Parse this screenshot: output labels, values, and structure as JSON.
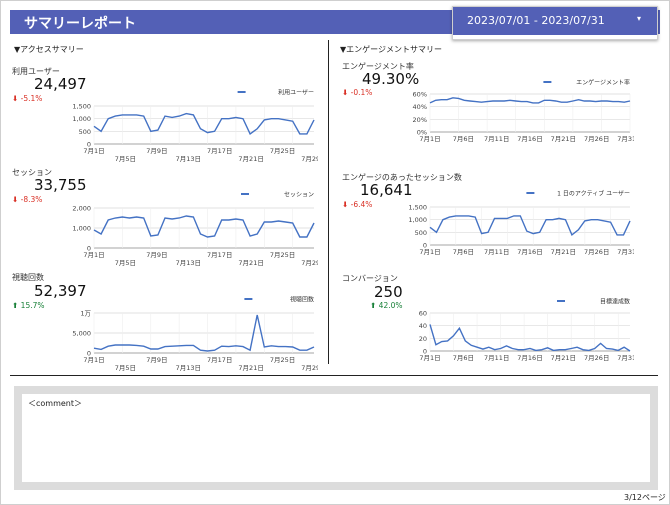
{
  "header": {
    "title": "サマリーレポート",
    "date_range": "2023/07/01 - 2023/07/31",
    "chevron": "▾"
  },
  "sections": {
    "access": "▼アクセスサマリー",
    "engagement": "▼エンゲージメントサマリー"
  },
  "colors": {
    "header_bg": "#5360b6",
    "line": "#4472c4",
    "negative": "#d93025",
    "positive": "#188038"
  },
  "metrics": {
    "users": {
      "label": "利用ユーザー",
      "value": "24,497",
      "delta": "⬇ -5.1%",
      "trend": "down"
    },
    "sessions": {
      "label": "セッション",
      "value": "33,755",
      "delta": "⬇ -8.3%",
      "trend": "down"
    },
    "views": {
      "label": "視聴回数",
      "value": "52,397",
      "delta": "⬆ 15.7%",
      "trend": "up"
    },
    "engagement": {
      "label": "エンゲージメント率",
      "value": "49.30%",
      "delta": "⬇ -0.1%",
      "trend": "down"
    },
    "eng_sessions": {
      "label": "エンゲージのあったセッション数",
      "value": "16,641",
      "delta": "⬇ -6.4%",
      "trend": "down"
    },
    "conversions": {
      "label": "コンバージョン",
      "value": "250",
      "delta": "⬆ 42.0%",
      "trend": "up"
    }
  },
  "chart_data": [
    {
      "type": "line",
      "id": "users",
      "series": [
        {
          "name": "利用ユーザー",
          "values": [
            700,
            500,
            1000,
            1100,
            1150,
            1150,
            1150,
            1100,
            500,
            550,
            1100,
            1050,
            1100,
            1200,
            1150,
            600,
            450,
            500,
            1000,
            1000,
            1050,
            1000,
            400,
            600,
            950,
            1000,
            1000,
            950,
            900,
            400,
            400,
            950
          ]
        }
      ],
      "yticks": [
        "0",
        "500",
        "1,000",
        "1,500"
      ],
      "ylim": [
        0,
        1500
      ],
      "xticks": [
        "7月1日",
        "7月5日",
        "7月9日",
        "7月13日",
        "7月17日",
        "7月21日",
        "7月25日",
        "7月29日"
      ]
    },
    {
      "type": "line",
      "id": "sessions",
      "series": [
        {
          "name": "セッション",
          "values": [
            900,
            700,
            1400,
            1500,
            1550,
            1500,
            1550,
            1500,
            600,
            650,
            1500,
            1450,
            1500,
            1600,
            1550,
            700,
            550,
            600,
            1400,
            1400,
            1450,
            1400,
            600,
            700,
            1300,
            1300,
            1350,
            1300,
            1250,
            550,
            550,
            1250
          ]
        }
      ],
      "yticks": [
        "0",
        "1,000",
        "2,000"
      ],
      "ylim": [
        0,
        2000
      ],
      "xticks": [
        "7月1日",
        "7月5日",
        "7月9日",
        "7月13日",
        "7月17日",
        "7月21日",
        "7月25日",
        "7月29日"
      ]
    },
    {
      "type": "line",
      "id": "views",
      "series": [
        {
          "name": "視聴回数",
          "values": [
            1200,
            900,
            1700,
            2000,
            2000,
            2000,
            1900,
            1700,
            1000,
            1000,
            1600,
            1700,
            1800,
            1900,
            1900,
            700,
            500,
            700,
            1700,
            1600,
            1800,
            1600,
            700,
            9500,
            1500,
            1800,
            1600,
            1600,
            1500,
            700,
            700,
            1500
          ]
        }
      ],
      "yticks": [
        "0",
        "5,000",
        "1万"
      ],
      "ylim": [
        0,
        10000
      ],
      "xticks": [
        "7月1日",
        "7月5日",
        "7月9日",
        "7月13日",
        "7月17日",
        "7月21日",
        "7月25日",
        "7月29日"
      ]
    },
    {
      "type": "line",
      "id": "engagement",
      "series": [
        {
          "name": "エンゲージメント率",
          "values": [
            46,
            50,
            51,
            51,
            54,
            53,
            50,
            49,
            48,
            47,
            48,
            49,
            49,
            49,
            50,
            49,
            48,
            48,
            46,
            46,
            50,
            50,
            49,
            47,
            47,
            49,
            51,
            49,
            49,
            48,
            49,
            49,
            48,
            48,
            47,
            49
          ]
        }
      ],
      "yticks": [
        "0%",
        "20%",
        "40%",
        "60%"
      ],
      "ylim": [
        0,
        60
      ],
      "xticks": [
        "7月1日",
        "7月6日",
        "7月11日",
        "7月16日",
        "7月21日",
        "7月26日",
        "7月31日"
      ]
    },
    {
      "type": "line",
      "id": "eng_sessions",
      "series": [
        {
          "name": "1 日のアクティブ ユーザー",
          "values": [
            700,
            500,
            1000,
            1100,
            1150,
            1150,
            1150,
            1100,
            450,
            500,
            1050,
            1050,
            1050,
            1150,
            1150,
            550,
            450,
            500,
            1000,
            1000,
            1050,
            1000,
            400,
            600,
            950,
            1000,
            1000,
            950,
            900,
            400,
            400,
            950
          ]
        }
      ],
      "yticks": [
        "0",
        "500",
        "1,000",
        "1,500"
      ],
      "ylim": [
        0,
        1500
      ],
      "xticks": [
        "7月1日",
        "7月6日",
        "7月11日",
        "7月16日",
        "7月21日",
        "7月26日",
        "7月31日"
      ]
    },
    {
      "type": "line",
      "id": "conversions",
      "series": [
        {
          "name": "目標達成数",
          "values": [
            42,
            10,
            15,
            16,
            24,
            36,
            16,
            9,
            6,
            3,
            6,
            2,
            4,
            8,
            4,
            2,
            2,
            4,
            1,
            2,
            5,
            1,
            2,
            2,
            4,
            6,
            2,
            1,
            4,
            12,
            4,
            3,
            1,
            6,
            0
          ]
        }
      ],
      "yticks": [
        "0",
        "20",
        "40",
        "60"
      ],
      "ylim": [
        0,
        60
      ],
      "xticks": [
        "7月1日",
        "7月6日",
        "7月11日",
        "7月16日",
        "7月21日",
        "7月26日",
        "7月31日"
      ]
    }
  ],
  "comment": {
    "label": "＜comment＞"
  },
  "footer": {
    "page": "3/12ページ"
  }
}
